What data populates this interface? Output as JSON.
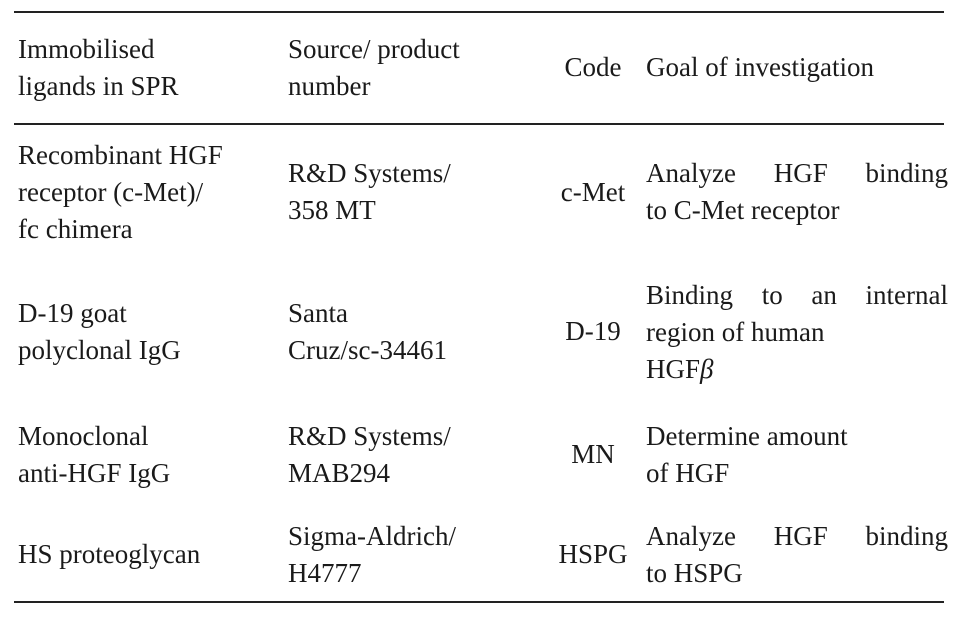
{
  "table": {
    "headers": {
      "ligands": [
        "Immobilised",
        "ligands in SPR"
      ],
      "source": [
        "Source/ product",
        "number"
      ],
      "code": "Code",
      "goal": [
        "Goal of investigation"
      ]
    },
    "rows": [
      {
        "ligand": [
          "Recombinant HGF",
          "receptor (c-Met)/",
          "fc chimera"
        ],
        "source": [
          "R&D Systems/",
          "358 MT"
        ],
        "code": "c-Met",
        "goal": [
          "Analyze HGF binding",
          "to C-Met receptor"
        ]
      },
      {
        "ligand": [
          "D-19 goat",
          "polyclonal IgG"
        ],
        "source": [
          "Santa",
          "Cruz/sc-34461"
        ],
        "code": "D-19",
        "goal": [
          "Binding to an internal",
          "region of human",
          "HGFβ"
        ]
      },
      {
        "ligand": [
          "Monoclonal",
          "anti-HGF IgG"
        ],
        "source": [
          "R&D Systems/",
          "MAB294"
        ],
        "code": "MN",
        "goal": [
          "Determine amount",
          "of HGF"
        ]
      },
      {
        "ligand": [
          "HS proteoglycan"
        ],
        "source": [
          "Sigma-Aldrich/",
          "H4777"
        ],
        "code": "HSPG",
        "goal": [
          "Analyze HGF binding",
          "to HSPG"
        ]
      }
    ]
  }
}
